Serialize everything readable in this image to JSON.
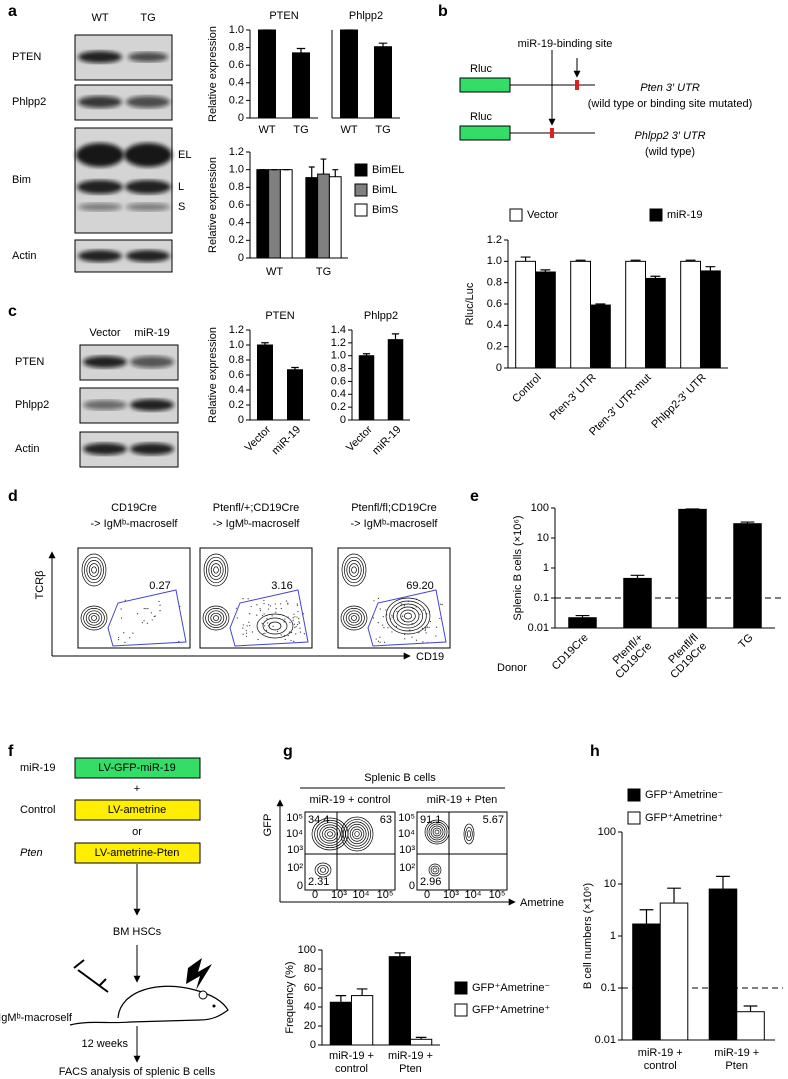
{
  "panel_labels": [
    "a",
    "b",
    "c",
    "d",
    "e",
    "f",
    "g",
    "h"
  ],
  "blots_a": {
    "lanes": [
      "WT",
      "TG"
    ],
    "rows": [
      "PTEN",
      "Phlpp2",
      "Bim",
      "Actin"
    ],
    "bim_bands": [
      "EL",
      "L",
      "S"
    ]
  },
  "blots_c": {
    "lanes": [
      "Vector",
      "miR-19"
    ],
    "rows": [
      "PTEN",
      "Phlpp2",
      "Actin"
    ]
  },
  "construct_b": {
    "site": "miR-19-binding site",
    "constructs": [
      {
        "box": "Rluc",
        "name": "Pten 3′ UTR",
        "note": "(wild type or binding site mutated)"
      },
      {
        "box": "Rluc",
        "name": "Phlpp2 3′ UTR",
        "note": "(wild type)"
      }
    ]
  },
  "flow_d": {
    "y_axis": "TCRβ",
    "x_axis": "CD19",
    "plots": [
      {
        "title": [
          "CD19Cre",
          "-> IgMᵇ-macroself"
        ],
        "gate": "0.27"
      },
      {
        "title": [
          "Ptenfl/+;CD19Cre",
          "-> IgMᵇ-macroself"
        ],
        "gate": "3.16"
      },
      {
        "title": [
          "Ptenfl/fl;CD19Cre",
          "-> IgMᵇ-macroself"
        ],
        "gate": "69.20"
      }
    ]
  },
  "flow_g": {
    "header": "Splenic B cells",
    "y_axis": "GFP",
    "x_axis": "Ametrine",
    "yticks": [
      "10⁵",
      "10⁴",
      "10³",
      "10²",
      "0"
    ],
    "xticks": [
      "0",
      "10³",
      "10⁴",
      "10⁵"
    ],
    "plots": [
      {
        "title": "miR-19 + control",
        "upper_left": "34.4",
        "upper_right": "63",
        "lower_left": "2.31"
      },
      {
        "title": "miR-19 + Pten",
        "upper_left": "91.1",
        "upper_right": "5.67",
        "lower_left": "2.96"
      }
    ]
  },
  "scheme_f": {
    "rows": [
      {
        "label": "miR-19",
        "box": "LV-GFP-miR-19"
      },
      {
        "label": "Control",
        "box": "LV-ametrine"
      },
      {
        "label": "Pten",
        "box": "LV-ametrine-Pten"
      }
    ],
    "joiners": [
      "+",
      "or"
    ],
    "cells": "BM HSCs",
    "recipient": "IgMᵇ-macroself",
    "time": "12 weeks",
    "readout": "FACS analysis of splenic B cells"
  },
  "chart_data": [
    {
      "type": "bar",
      "title": "PTEN",
      "ylabel": "Relative expression",
      "categories": [
        "WT",
        "TG"
      ],
      "values": [
        1,
        0.74
      ],
      "errors": [
        0,
        0.05
      ],
      "color": "#000000",
      "ylim": [
        0,
        1
      ],
      "yticks": [
        0,
        0.2,
        0.4,
        0.6,
        0.8,
        {
          "value": 1,
          "label": "1.0"
        }
      ]
    },
    {
      "type": "bar",
      "title": "Phlpp2",
      "categories": [
        "WT",
        "TG"
      ],
      "values": [
        1,
        0.81
      ],
      "errors": [
        0,
        0.04
      ],
      "color": "#000000",
      "ylim": [
        0,
        1
      ]
    },
    {
      "type": "bar",
      "ylabel": "Relative expression",
      "categories": [
        "WT",
        "TG"
      ],
      "series": [
        {
          "name": "BimEL",
          "color": "#000000",
          "values": [
            1,
            0.91
          ],
          "errors": [
            0,
            0.12
          ]
        },
        {
          "name": "BimL",
          "color": "#808080",
          "values": [
            1,
            0.95
          ],
          "errors": [
            0,
            0.17
          ]
        },
        {
          "name": "BimS",
          "color": "#ffffff",
          "values": [
            1,
            0.92
          ],
          "errors": [
            0,
            0.08
          ]
        }
      ],
      "ylim": [
        0,
        1.2
      ],
      "yticks": [
        0,
        0.2,
        0.4,
        0.6,
        0.8,
        {
          "value": 1,
          "label": "1.0"
        },
        1.2
      ]
    },
    {
      "type": "bar",
      "ylabel": "Rluc/Luc",
      "categories": [
        "Control",
        "Pten-3′ UTR",
        "Pten-3′ UTR-mut",
        "Phlpp2-3′ UTR"
      ],
      "series": [
        {
          "name": "Vector",
          "color": "#ffffff",
          "values": [
            1,
            1,
            1,
            1
          ],
          "errors": [
            0.04,
            0.01,
            0.01,
            0.01
          ]
        },
        {
          "name": "miR-19",
          "color": "#000000",
          "values": [
            0.9,
            0.59,
            0.84,
            0.91
          ],
          "errors": [
            0.02,
            0.01,
            0.02,
            0.04
          ]
        }
      ],
      "ylim": [
        0,
        1.2
      ],
      "yticks": [
        0,
        0.2,
        0.4,
        0.6,
        0.8,
        {
          "value": 1,
          "label": "1.0"
        },
        1.2
      ]
    },
    {
      "type": "bar",
      "title": "PTEN",
      "ylabel": "Relative expression",
      "categories": [
        "Vector",
        "miR-19"
      ],
      "values": [
        1,
        0.67
      ],
      "errors": [
        0.03,
        0.03
      ],
      "color": "#000000",
      "ylim": [
        0,
        1.2
      ],
      "yticks": [
        0,
        0.2,
        0.4,
        0.6,
        0.8,
        {
          "value": 1,
          "label": "1.0"
        },
        1.2
      ]
    },
    {
      "type": "bar",
      "title": "Phlpp2",
      "categories": [
        "Vector",
        "miR-19"
      ],
      "values": [
        1,
        1.25
      ],
      "errors": [
        0.03,
        0.09
      ],
      "color": "#000000",
      "ylim": [
        0,
        1.4
      ],
      "yticks": [
        0,
        0.2,
        0.4,
        0.6,
        0.8,
        {
          "value": 1,
          "label": "1.0"
        },
        1.2,
        1.4
      ]
    },
    {
      "type": "bar",
      "ylabel": "Splenic B cells (×10⁶)",
      "xlabel": "Donor",
      "categories": [
        "CD19Cre",
        [
          "Ptenfl/+",
          "CD19Cre"
        ],
        [
          "Ptenfl/fl",
          "CD19Cre"
        ],
        "TG"
      ],
      "values": [
        0.022,
        0.45,
        90,
        30
      ],
      "errors": [
        0.004,
        0.12,
        3,
        4
      ],
      "color": "#000000",
      "log_scale": true,
      "ylim": [
        0.01,
        100
      ],
      "yticks": [
        0.01,
        0.1,
        1,
        10,
        100
      ],
      "reference_line": 0.1
    },
    {
      "type": "bar",
      "ylabel": "Frequency (%)",
      "categories": [
        [
          "miR-19 +",
          "control"
        ],
        [
          "miR-19 +",
          "Pten"
        ]
      ],
      "series": [
        {
          "name": "GFP⁺Ametrine⁻",
          "color": "#000000",
          "values": [
            45,
            93
          ],
          "errors": [
            7,
            4
          ]
        },
        {
          "name": "GFP⁺Ametrine⁺",
          "color": "#ffffff",
          "values": [
            52,
            6
          ],
          "errors": [
            7,
            2
          ]
        }
      ],
      "ylim": [
        0,
        100
      ],
      "yticks": [
        0,
        20,
        40,
        60,
        80,
        100
      ]
    },
    {
      "type": "bar",
      "ylabel": "B cell numbers (×10⁶)",
      "categories": [
        [
          "miR-19 +",
          "control"
        ],
        [
          "miR-19 +",
          "Pten"
        ]
      ],
      "series": [
        {
          "name": "GFP⁺Ametrine⁻",
          "color": "#000000",
          "values": [
            1.7,
            8
          ],
          "errors": [
            1.5,
            6
          ]
        },
        {
          "name": "GFP⁺Ametrine⁺",
          "color": "#ffffff",
          "values": [
            4.3,
            0.035
          ],
          "errors": [
            4,
            0.01
          ]
        }
      ],
      "log_scale": true,
      "ylim": [
        0.01,
        100
      ],
      "yticks": [
        0.01,
        0.1,
        1,
        10,
        100
      ],
      "reference_line": 0.1
    }
  ]
}
